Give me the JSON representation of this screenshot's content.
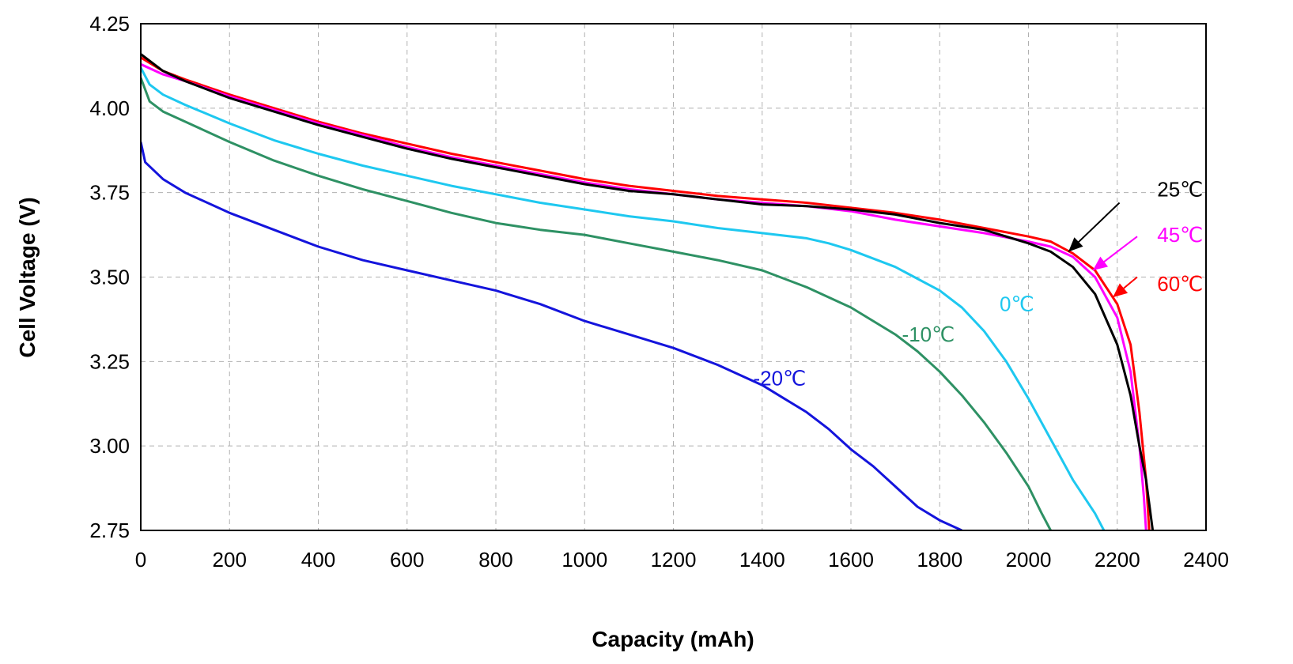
{
  "chart_data": {
    "type": "line",
    "xlabel": "Capacity (mAh)",
    "ylabel": "Cell Voltage (V)",
    "xlim": [
      0,
      2400
    ],
    "ylim": [
      2.75,
      4.25
    ],
    "xticks": [
      "0",
      "200",
      "400",
      "600",
      "800",
      "1000",
      "1200",
      "1400",
      "1600",
      "1800",
      "2000",
      "2200",
      "2400"
    ],
    "yticks": [
      "2.75",
      "3.00",
      "3.25",
      "3.50",
      "3.75",
      "4.00",
      "4.25"
    ],
    "grid": true,
    "series": [
      {
        "name": "60℃",
        "color": "#ff0000",
        "x": [
          0,
          50,
          100,
          200,
          300,
          400,
          500,
          600,
          700,
          800,
          900,
          1000,
          1100,
          1200,
          1300,
          1400,
          1500,
          1600,
          1700,
          1800,
          1900,
          2000,
          2050,
          2100,
          2150,
          2200,
          2230,
          2250,
          2265,
          2272
        ],
        "y": [
          4.15,
          4.11,
          4.085,
          4.04,
          4.0,
          3.96,
          3.925,
          3.895,
          3.865,
          3.84,
          3.815,
          3.79,
          3.77,
          3.755,
          3.74,
          3.73,
          3.72,
          3.705,
          3.69,
          3.67,
          3.645,
          3.62,
          3.605,
          3.57,
          3.52,
          3.42,
          3.3,
          3.1,
          2.9,
          2.75
        ]
      },
      {
        "name": "45℃",
        "color": "#ff00ff",
        "x": [
          0,
          50,
          100,
          200,
          300,
          400,
          500,
          600,
          700,
          800,
          900,
          1000,
          1100,
          1200,
          1300,
          1400,
          1500,
          1600,
          1700,
          1800,
          1900,
          2000,
          2050,
          2100,
          2150,
          2200,
          2230,
          2250,
          2260,
          2265
        ],
        "y": [
          4.13,
          4.1,
          4.08,
          4.035,
          3.995,
          3.955,
          3.92,
          3.885,
          3.855,
          3.83,
          3.805,
          3.78,
          3.76,
          3.745,
          3.73,
          3.72,
          3.71,
          3.695,
          3.67,
          3.65,
          3.63,
          3.605,
          3.59,
          3.56,
          3.5,
          3.38,
          3.22,
          3.0,
          2.85,
          2.75
        ]
      },
      {
        "name": "25℃",
        "color": "#000000",
        "x": [
          0,
          50,
          100,
          200,
          300,
          400,
          500,
          600,
          700,
          800,
          900,
          1000,
          1100,
          1200,
          1300,
          1400,
          1500,
          1600,
          1700,
          1800,
          1900,
          2000,
          2050,
          2100,
          2150,
          2200,
          2230,
          2250,
          2265,
          2280
        ],
        "y": [
          4.16,
          4.11,
          4.08,
          4.03,
          3.99,
          3.95,
          3.915,
          3.88,
          3.85,
          3.825,
          3.8,
          3.775,
          3.755,
          3.745,
          3.73,
          3.715,
          3.71,
          3.7,
          3.685,
          3.66,
          3.64,
          3.6,
          3.575,
          3.53,
          3.45,
          3.3,
          3.15,
          3.0,
          2.9,
          2.75
        ]
      },
      {
        "name": "0℃",
        "color": "#1ec8f0",
        "x": [
          0,
          20,
          50,
          100,
          200,
          300,
          400,
          500,
          600,
          700,
          800,
          900,
          1000,
          1100,
          1200,
          1300,
          1400,
          1500,
          1550,
          1600,
          1700,
          1800,
          1850,
          1900,
          1950,
          2000,
          2050,
          2100,
          2150,
          2170
        ],
        "y": [
          4.12,
          4.07,
          4.04,
          4.01,
          3.955,
          3.905,
          3.865,
          3.83,
          3.8,
          3.77,
          3.745,
          3.72,
          3.7,
          3.68,
          3.665,
          3.645,
          3.63,
          3.615,
          3.6,
          3.58,
          3.53,
          3.46,
          3.41,
          3.34,
          3.25,
          3.14,
          3.02,
          2.9,
          2.8,
          2.75
        ]
      },
      {
        "name": "-10℃",
        "color": "#2e9164",
        "x": [
          0,
          20,
          50,
          100,
          200,
          300,
          400,
          500,
          600,
          700,
          800,
          900,
          1000,
          1100,
          1200,
          1300,
          1400,
          1500,
          1600,
          1700,
          1750,
          1800,
          1850,
          1900,
          1950,
          2000,
          2030,
          2050
        ],
        "y": [
          4.09,
          4.02,
          3.99,
          3.96,
          3.9,
          3.845,
          3.8,
          3.76,
          3.725,
          3.69,
          3.66,
          3.64,
          3.625,
          3.6,
          3.575,
          3.55,
          3.52,
          3.47,
          3.41,
          3.33,
          3.28,
          3.22,
          3.15,
          3.07,
          2.98,
          2.88,
          2.8,
          2.75
        ]
      },
      {
        "name": "-20℃",
        "color": "#1414dc",
        "x": [
          0,
          10,
          50,
          100,
          200,
          300,
          400,
          500,
          600,
          700,
          800,
          900,
          1000,
          1100,
          1200,
          1300,
          1400,
          1450,
          1500,
          1550,
          1600,
          1650,
          1700,
          1750,
          1800,
          1850
        ],
        "y": [
          3.9,
          3.84,
          3.79,
          3.75,
          3.69,
          3.64,
          3.59,
          3.55,
          3.52,
          3.49,
          3.46,
          3.42,
          3.37,
          3.33,
          3.29,
          3.24,
          3.18,
          3.14,
          3.1,
          3.05,
          2.99,
          2.94,
          2.88,
          2.82,
          2.78,
          2.75
        ]
      }
    ],
    "annotations": [
      {
        "text": "25℃",
        "color": "#000000",
        "x": 2290,
        "y": 3.76,
        "arrow": true,
        "arrow_from": [
          2205,
          3.72
        ],
        "arrow_to": [
          2090,
          3.575
        ]
      },
      {
        "text": "45℃",
        "color": "#ff00ff",
        "x": 2290,
        "y": 3.625,
        "arrow": true,
        "arrow_from": [
          2245,
          3.62
        ],
        "arrow_to": [
          2145,
          3.52
        ]
      },
      {
        "text": "60℃",
        "color": "#ff0000",
        "x": 2290,
        "y": 3.48,
        "arrow": true,
        "arrow_from": [
          2245,
          3.5
        ],
        "arrow_to": [
          2190,
          3.44
        ]
      },
      {
        "text": "0℃",
        "color": "#1ec8f0",
        "x": 1935,
        "y": 3.42,
        "arrow": false
      },
      {
        "text": "-10℃",
        "color": "#2e9164",
        "x": 1715,
        "y": 3.33,
        "arrow": false
      },
      {
        "text": "-20℃",
        "color": "#1414dc",
        "x": 1380,
        "y": 3.2,
        "arrow": false
      }
    ]
  }
}
